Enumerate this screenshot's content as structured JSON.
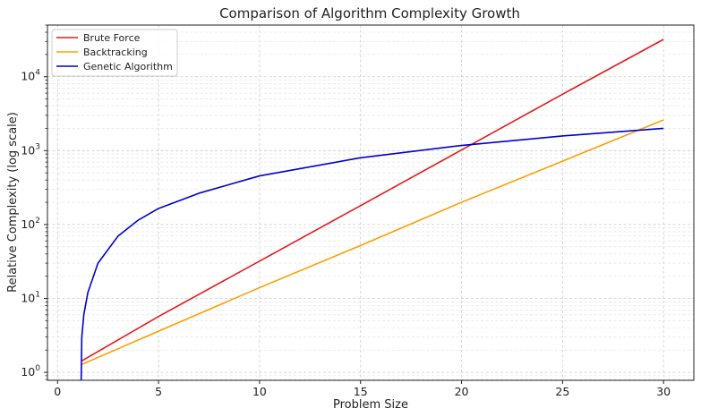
{
  "chart_data": {
    "type": "line",
    "title": "Comparison of Algorithm Complexity Growth",
    "xlabel": "Problem Size",
    "ylabel": "Relative Complexity (log scale)",
    "xlim": [
      -0.5,
      31.5
    ],
    "ylim": [
      0.78,
      50000
    ],
    "yscale": "log",
    "grid": true,
    "legend_position": "top-left",
    "x_ticks": [
      0,
      5,
      10,
      15,
      20,
      25,
      30
    ],
    "y_ticks": [
      1,
      10,
      100,
      1000,
      10000
    ],
    "y_tick_labels": [
      {
        "base": "10",
        "exp": "0"
      },
      {
        "base": "10",
        "exp": "1"
      },
      {
        "base": "10",
        "exp": "2"
      },
      {
        "base": "10",
        "exp": "3"
      },
      {
        "base": "10",
        "exp": "4"
      }
    ],
    "series": [
      {
        "name": "Brute Force",
        "color": "#e41a1c",
        "x": [
          1.2,
          5,
          10,
          15,
          20,
          25,
          30
        ],
        "y": [
          1.43,
          5.7,
          32,
          180,
          1020,
          5800,
          32000
        ]
      },
      {
        "name": "Backtracking",
        "color": "#ff9f00",
        "x": [
          1.2,
          5,
          10,
          15,
          20,
          25,
          30
        ],
        "y": [
          1.28,
          3.6,
          14,
          52,
          200,
          720,
          2600
        ]
      },
      {
        "name": "Genetic Algorithm",
        "color": "#0000cc",
        "x": [
          1.17,
          1.2,
          1.3,
          1.5,
          2,
          3,
          4,
          5,
          7,
          10,
          15,
          20,
          25,
          30
        ],
        "y": [
          0.78,
          3.0,
          6.0,
          12,
          30,
          70,
          115,
          165,
          265,
          455,
          800,
          1175,
          1580,
          2000
        ]
      }
    ]
  }
}
